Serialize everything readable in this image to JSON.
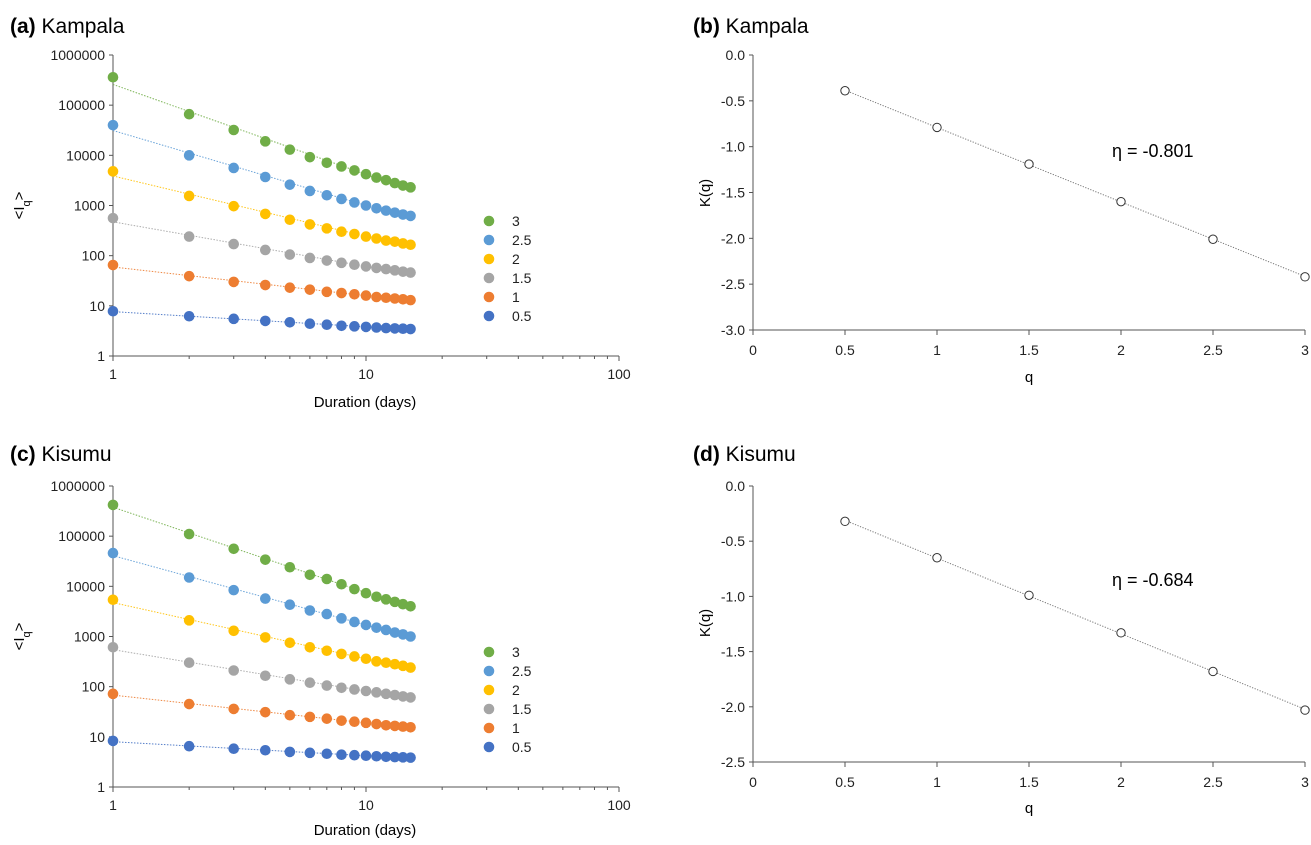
{
  "chart_data": [
    {
      "id": "a",
      "type": "scatter",
      "title_tag": "(a)",
      "title": "Kampala",
      "xlabel": "Duration (days)",
      "ylabel_main": "<I",
      "ylabel_sub": "q",
      "ylabel_end": ">",
      "xscale": "log",
      "yscale": "log",
      "xlim": [
        1,
        100
      ],
      "ylim": [
        1,
        1000000
      ],
      "xticks": [
        "1",
        "10",
        "100"
      ],
      "yticks": [
        "1",
        "10",
        "100",
        "1000",
        "10000",
        "100000",
        "1000000"
      ],
      "legend_position": "right",
      "series": [
        {
          "name": "3",
          "color": "#70ad47",
          "x": [
            1,
            2,
            3,
            4,
            5,
            6,
            7,
            8,
            9,
            10,
            11,
            12,
            13,
            14,
            15
          ],
          "y": [
            360000,
            66000,
            32000,
            19000,
            13000,
            9200,
            7100,
            6000,
            5000,
            4200,
            3600,
            3200,
            2800,
            2500,
            2300
          ]
        },
        {
          "name": "2.5",
          "color": "#5b9bd5",
          "x": [
            1,
            2,
            3,
            4,
            5,
            6,
            7,
            8,
            9,
            10,
            11,
            12,
            13,
            14,
            15
          ],
          "y": [
            40000,
            10000,
            5600,
            3700,
            2600,
            1950,
            1600,
            1350,
            1150,
            1000,
            880,
            790,
            720,
            660,
            620
          ]
        },
        {
          "name": "2",
          "color": "#ffc000",
          "x": [
            1,
            2,
            3,
            4,
            5,
            6,
            7,
            8,
            9,
            10,
            11,
            12,
            13,
            14,
            15
          ],
          "y": [
            4800,
            1550,
            970,
            680,
            520,
            420,
            350,
            300,
            270,
            240,
            220,
            200,
            190,
            175,
            165
          ]
        },
        {
          "name": "1.5",
          "color": "#a5a5a5",
          "x": [
            1,
            2,
            3,
            4,
            5,
            6,
            7,
            8,
            9,
            10,
            11,
            12,
            13,
            14,
            15
          ],
          "y": [
            560,
            240,
            170,
            130,
            105,
            90,
            80,
            72,
            66,
            61,
            57,
            54,
            51,
            48,
            46
          ]
        },
        {
          "name": "1",
          "color": "#ed7d31",
          "x": [
            1,
            2,
            3,
            4,
            5,
            6,
            7,
            8,
            9,
            10,
            11,
            12,
            13,
            14,
            15
          ],
          "y": [
            65,
            39,
            30,
            26,
            23,
            21,
            19,
            18,
            17,
            16,
            15,
            14.5,
            14,
            13.5,
            13
          ]
        },
        {
          "name": "0.5",
          "color": "#4472c4",
          "x": [
            1,
            2,
            3,
            4,
            5,
            6,
            7,
            8,
            9,
            10,
            11,
            12,
            13,
            14,
            15
          ],
          "y": [
            7.8,
            6.2,
            5.5,
            5.0,
            4.7,
            4.4,
            4.2,
            4.0,
            3.9,
            3.8,
            3.7,
            3.6,
            3.55,
            3.5,
            3.45
          ]
        }
      ]
    },
    {
      "id": "b",
      "type": "scatter",
      "title_tag": "(b)",
      "title": "Kampala",
      "xlabel": "q",
      "ylabel": "K(q)",
      "xlim": [
        0,
        3
      ],
      "ylim": [
        -3.0,
        0.0
      ],
      "xticks": [
        "0",
        "0.5",
        "1",
        "1.5",
        "2",
        "2.5",
        "3"
      ],
      "yticks": [
        "0.0",
        "-0.5",
        "-1.0",
        "-1.5",
        "-2.0",
        "-2.5",
        "-3.0"
      ],
      "annotation": "η = -0.801",
      "series": [
        {
          "x": [
            0.5,
            1,
            1.5,
            2,
            2.5,
            3
          ],
          "y": [
            -0.39,
            -0.79,
            -1.19,
            -1.6,
            -2.01,
            -2.42
          ]
        }
      ]
    },
    {
      "id": "c",
      "type": "scatter",
      "title_tag": "(c)",
      "title": "Kisumu",
      "xlabel": "Duration (days)",
      "ylabel_main": "<I",
      "ylabel_sub": "q",
      "ylabel_end": ">",
      "xscale": "log",
      "yscale": "log",
      "xlim": [
        1,
        100
      ],
      "ylim": [
        1,
        1000000
      ],
      "xticks": [
        "1",
        "10",
        "100"
      ],
      "yticks": [
        "1",
        "10",
        "100",
        "1000",
        "10000",
        "100000",
        "1000000"
      ],
      "legend_position": "right",
      "series": [
        {
          "name": "3",
          "color": "#70ad47",
          "x": [
            1,
            2,
            3,
            4,
            5,
            6,
            7,
            8,
            9,
            10,
            11,
            12,
            13,
            14,
            15
          ],
          "y": [
            420000,
            110000,
            56000,
            34000,
            24000,
            17000,
            14000,
            11000,
            8800,
            7300,
            6200,
            5500,
            4900,
            4400,
            4000
          ]
        },
        {
          "name": "2.5",
          "color": "#5b9bd5",
          "x": [
            1,
            2,
            3,
            4,
            5,
            6,
            7,
            8,
            9,
            10,
            11,
            12,
            13,
            14,
            15
          ],
          "y": [
            46000,
            15000,
            8400,
            5700,
            4300,
            3300,
            2800,
            2300,
            1950,
            1700,
            1500,
            1350,
            1200,
            1100,
            1000
          ]
        },
        {
          "name": "2",
          "color": "#ffc000",
          "x": [
            1,
            2,
            3,
            4,
            5,
            6,
            7,
            8,
            9,
            10,
            11,
            12,
            13,
            14,
            15
          ],
          "y": [
            5400,
            2100,
            1300,
            960,
            750,
            610,
            520,
            450,
            400,
            360,
            320,
            300,
            280,
            260,
            240
          ]
        },
        {
          "name": "1.5",
          "color": "#a5a5a5",
          "x": [
            1,
            2,
            3,
            4,
            5,
            6,
            7,
            8,
            9,
            10,
            11,
            12,
            13,
            14,
            15
          ],
          "y": [
            610,
            300,
            210,
            165,
            140,
            120,
            105,
            95,
            88,
            82,
            77,
            72,
            68,
            64,
            61
          ]
        },
        {
          "name": "1",
          "color": "#ed7d31",
          "x": [
            1,
            2,
            3,
            4,
            5,
            6,
            7,
            8,
            9,
            10,
            11,
            12,
            13,
            14,
            15
          ],
          "y": [
            72,
            45,
            36,
            31,
            27,
            25,
            23,
            21,
            20,
            19,
            18,
            17,
            16.5,
            16,
            15.5
          ]
        },
        {
          "name": "0.5",
          "color": "#4472c4",
          "x": [
            1,
            2,
            3,
            4,
            5,
            6,
            7,
            8,
            9,
            10,
            11,
            12,
            13,
            14,
            15
          ],
          "y": [
            8.3,
            6.5,
            5.8,
            5.4,
            5.0,
            4.8,
            4.6,
            4.4,
            4.3,
            4.2,
            4.1,
            4.0,
            3.95,
            3.9,
            3.85
          ]
        }
      ]
    },
    {
      "id": "d",
      "type": "scatter",
      "title_tag": "(d)",
      "title": "Kisumu",
      "xlabel": "q",
      "ylabel": "K(q)",
      "xlim": [
        0,
        3
      ],
      "ylim": [
        -2.5,
        0.0
      ],
      "xticks": [
        "0",
        "0.5",
        "1",
        "1.5",
        "2",
        "2.5",
        "3"
      ],
      "yticks": [
        "0.0",
        "-0.5",
        "-1.0",
        "-1.5",
        "-2.0",
        "-2.5"
      ],
      "annotation": "η = -0.684",
      "series": [
        {
          "x": [
            0.5,
            1,
            1.5,
            2,
            2.5,
            3
          ],
          "y": [
            -0.32,
            -0.65,
            -0.99,
            -1.33,
            -1.68,
            -2.03
          ]
        }
      ]
    }
  ]
}
